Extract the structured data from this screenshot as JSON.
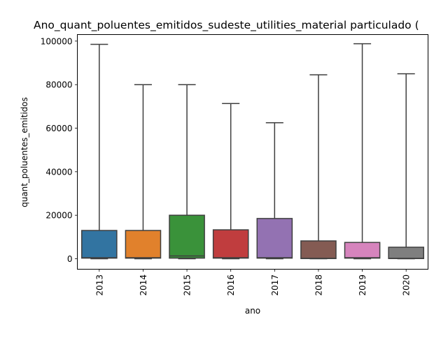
{
  "chart_data": {
    "type": "box",
    "title": "Ano_quant_poluentes_emitidos_sudeste_utilities_material particulado (",
    "xlabel": "ano",
    "ylabel": "quant_poluentes_emitidos",
    "categories": [
      "2013",
      "2014",
      "2015",
      "2016",
      "2017",
      "2018",
      "2019",
      "2020"
    ],
    "ylim": [
      -4800,
      103000
    ],
    "yticks": [
      0,
      20000,
      40000,
      60000,
      80000,
      100000
    ],
    "ytick_labels": [
      "0",
      "20000",
      "40000",
      "60000",
      "80000",
      "100000"
    ],
    "boxes": [
      {
        "category": "2013",
        "whisker_low": 0,
        "q1": 300,
        "median": 500,
        "q3": 13000,
        "whisker_high": 98500,
        "color": "#3274a1"
      },
      {
        "category": "2014",
        "whisker_low": 0,
        "q1": 300,
        "median": 500,
        "q3": 13000,
        "whisker_high": 80000,
        "color": "#e1812c"
      },
      {
        "category": "2015",
        "whisker_low": 0,
        "q1": 300,
        "median": 1300,
        "q3": 20000,
        "whisker_high": 80000,
        "color": "#3a923a"
      },
      {
        "category": "2016",
        "whisker_low": 0,
        "q1": 300,
        "median": 500,
        "q3": 13300,
        "whisker_high": 71300,
        "color": "#c03d3e"
      },
      {
        "category": "2017",
        "whisker_low": 0,
        "q1": 300,
        "median": 500,
        "q3": 18500,
        "whisker_high": 62500,
        "color": "#9372b2"
      },
      {
        "category": "2018",
        "whisker_low": 0,
        "q1": 100,
        "median": 200,
        "q3": 8200,
        "whisker_high": 84500,
        "color": "#845b53"
      },
      {
        "category": "2019",
        "whisker_low": 0,
        "q1": 300,
        "median": 500,
        "q3": 7500,
        "whisker_high": 98800,
        "color": "#d684bd"
      },
      {
        "category": "2020",
        "whisker_low": 0,
        "q1": 100,
        "median": 200,
        "q3": 5300,
        "whisker_high": 85000,
        "color": "#7f7f7f"
      }
    ],
    "grid": false,
    "legend": "none"
  }
}
